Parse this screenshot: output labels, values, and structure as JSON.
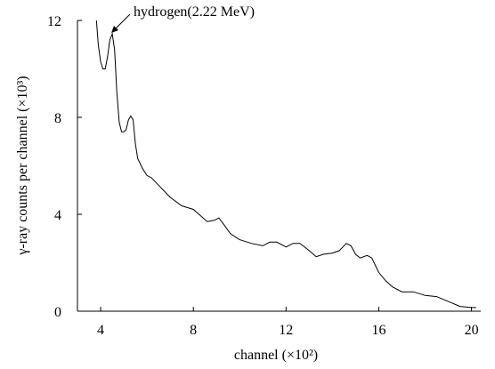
{
  "chart_data": {
    "type": "line",
    "x_label": "channel  (×10²)",
    "y_label": "γ-ray counts per channel  (×10³)",
    "annotation": "hydrogen(2.22 MeV)",
    "color": "#000000",
    "xlim": [
      3,
      20.4
    ],
    "ylim": [
      0,
      12
    ],
    "xticks": [
      4,
      8,
      12,
      16,
      20
    ],
    "yticks": [
      0,
      4,
      8,
      12
    ],
    "x": [
      3.82,
      3.9,
      4.0,
      4.1,
      4.2,
      4.3,
      4.4,
      4.5,
      4.6,
      4.7,
      4.8,
      4.9,
      5.0,
      5.1,
      5.2,
      5.3,
      5.4,
      5.5,
      5.6,
      5.8,
      6.0,
      6.2,
      6.5,
      7.0,
      7.5,
      8.0,
      8.3,
      8.6,
      8.9,
      9.1,
      9.3,
      9.6,
      10.0,
      10.5,
      11.0,
      11.3,
      11.6,
      12.0,
      12.3,
      12.6,
      13.0,
      13.3,
      13.6,
      14.0,
      14.3,
      14.6,
      14.8,
      15.0,
      15.2,
      15.5,
      15.7,
      16.0,
      16.3,
      16.6,
      17.0,
      17.5,
      18.0,
      18.5,
      19.0,
      19.5,
      20.0,
      20.2
    ],
    "values": [
      12,
      11,
      10.3,
      10.0,
      10.0,
      10.5,
      11.2,
      11.45,
      10.8,
      9.0,
      7.8,
      7.4,
      7.4,
      7.5,
      7.9,
      8.05,
      7.9,
      6.9,
      6.3,
      5.9,
      5.6,
      5.5,
      5.2,
      4.7,
      4.35,
      4.2,
      3.95,
      3.7,
      3.75,
      3.85,
      3.6,
      3.2,
      2.95,
      2.8,
      2.7,
      2.85,
      2.85,
      2.65,
      2.8,
      2.8,
      2.5,
      2.25,
      2.35,
      2.4,
      2.5,
      2.8,
      2.7,
      2.35,
      2.2,
      2.3,
      2.2,
      1.6,
      1.25,
      1.0,
      0.8,
      0.8,
      0.65,
      0.6,
      0.4,
      0.2,
      0.15,
      0.15
    ]
  }
}
